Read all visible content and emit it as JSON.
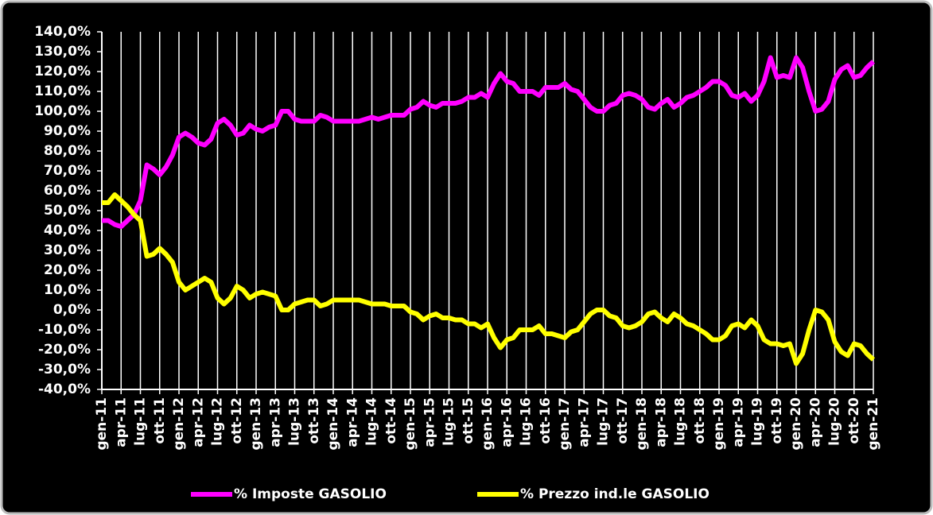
{
  "chart_data": {
    "type": "line",
    "categories": [
      "gen-11",
      null,
      null,
      "apr-11",
      null,
      null,
      "lug-11",
      null,
      null,
      "ott-11",
      null,
      null,
      "gen-12",
      null,
      null,
      "apr-12",
      null,
      null,
      "lug-12",
      null,
      null,
      "ott-12",
      null,
      null,
      "gen-13",
      null,
      null,
      "apr-13",
      null,
      null,
      "lug-13",
      null,
      null,
      "ott-13",
      null,
      null,
      "gen-14",
      null,
      null,
      "apr-14",
      null,
      null,
      "lug-14",
      null,
      null,
      "ott-14",
      null,
      null,
      "gen-15",
      null,
      null,
      "apr-15",
      null,
      null,
      "lug-15",
      null,
      null,
      "ott-15",
      null,
      null,
      "gen-16",
      null,
      null,
      "apr-16",
      null,
      null,
      "lug-16",
      null,
      null,
      "ott-16",
      null,
      null,
      "gen-17",
      null,
      null,
      "apr-17",
      null,
      null,
      "lug-17",
      null,
      null,
      "ott-17",
      null,
      null,
      "gen-18",
      null,
      null,
      "apr-18",
      null,
      null,
      "lug-18",
      null,
      null,
      "ott-18",
      null,
      null,
      "gen-19",
      null,
      null,
      "apr-19",
      null,
      null,
      "lug-19",
      null,
      null,
      "ott-19",
      null,
      null,
      "gen-20",
      null,
      null,
      "apr-20",
      null,
      null,
      "lug-20",
      null,
      null,
      "ott-20",
      null,
      null,
      "gen-21"
    ],
    "series": [
      {
        "name": "% Imposte GASOLIO",
        "color": "#ff00ff",
        "values": [
          45,
          45,
          43,
          42,
          45,
          48,
          55,
          73,
          71,
          68,
          72,
          78,
          87,
          89,
          87,
          84,
          83,
          86,
          94,
          96,
          93,
          88,
          89,
          93,
          91,
          90,
          92,
          93,
          100,
          100,
          96,
          95,
          95,
          95,
          98,
          97,
          95,
          95,
          95,
          95,
          95,
          96,
          97,
          96,
          97,
          98,
          98,
          98,
          101,
          102,
          105,
          103,
          102,
          104,
          104,
          104,
          105,
          107,
          107,
          109,
          107,
          114,
          119,
          115,
          114,
          110,
          110,
          110,
          108,
          112,
          112,
          112,
          114,
          111,
          110,
          106,
          102,
          100,
          100,
          103,
          104,
          108,
          109,
          108,
          106,
          102,
          101,
          104,
          106,
          102,
          104,
          107,
          108,
          110,
          112,
          115,
          115,
          113,
          108,
          107,
          109,
          105,
          108,
          115,
          127,
          117,
          118,
          117,
          127,
          122,
          110,
          100,
          101,
          105,
          116,
          121,
          123,
          117,
          118,
          122,
          125
        ]
      },
      {
        "name": "% Prezzo ind.le GASOLIO",
        "color": "#ffff00",
        "values": [
          54,
          54,
          58,
          55,
          52,
          48,
          45,
          27,
          28,
          31,
          28,
          24,
          14,
          10,
          12,
          14,
          16,
          14,
          6,
          3,
          6,
          12,
          10,
          6,
          8,
          9,
          8,
          7,
          0,
          0,
          3,
          4,
          5,
          5,
          2,
          3,
          5,
          5,
          5,
          5,
          5,
          4,
          3,
          3,
          3,
          2,
          2,
          2,
          -1,
          -2,
          -5,
          -3,
          -2,
          -4,
          -4,
          -5,
          -5,
          -7,
          -7,
          -9,
          -7,
          -14,
          -19,
          -15,
          -14,
          -10,
          -10,
          -10,
          -8,
          -12,
          -12,
          -13,
          -14,
          -11,
          -10,
          -6,
          -2,
          0,
          0,
          -3,
          -4,
          -8,
          -9,
          -8,
          -6,
          -2,
          -1,
          -4,
          -6,
          -2,
          -4,
          -7,
          -8,
          -10,
          -12,
          -15,
          -15,
          -13,
          -8,
          -7,
          -9,
          -5,
          -8,
          -15,
          -17,
          -17,
          -18,
          -17,
          -27,
          -22,
          -10,
          0,
          -1,
          -5,
          -16,
          -21,
          -23,
          -17,
          -18,
          -22,
          -25
        ]
      }
    ],
    "ylim": [
      -40,
      140
    ],
    "yticks": [
      {
        "value": -40,
        "label": "-40,0%"
      },
      {
        "value": -30,
        "label": "-30,0%"
      },
      {
        "value": -20,
        "label": "-20,0%"
      },
      {
        "value": -10,
        "label": "-10,0%"
      },
      {
        "value": 0,
        "label": "0,0%"
      },
      {
        "value": 10,
        "label": "10,0%"
      },
      {
        "value": 20,
        "label": "20,0%"
      },
      {
        "value": 30,
        "label": "30,0%"
      },
      {
        "value": 40,
        "label": "40,0%"
      },
      {
        "value": 50,
        "label": "50,0%"
      },
      {
        "value": 60,
        "label": "60,0%"
      },
      {
        "value": 70,
        "label": "70,0%"
      },
      {
        "value": 80,
        "label": "80,0%"
      },
      {
        "value": 90,
        "label": "90,0%"
      },
      {
        "value": 100,
        "label": "100,0%"
      },
      {
        "value": 110,
        "label": "110,0%"
      },
      {
        "value": 120,
        "label": "120,0%"
      },
      {
        "value": 130,
        "label": "130,0%"
      },
      {
        "value": 140,
        "label": "140,0%"
      }
    ],
    "grid": true,
    "legend": "bottom"
  }
}
